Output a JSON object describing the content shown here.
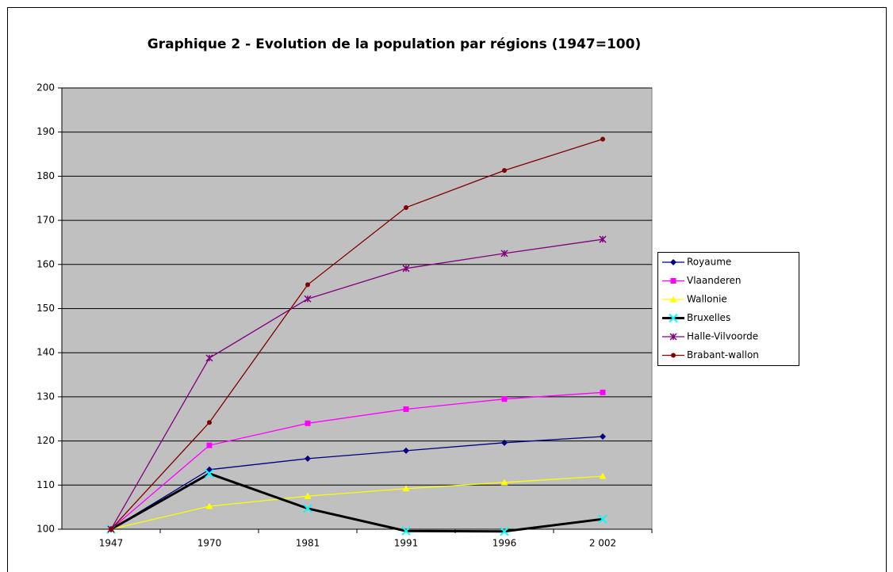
{
  "chart_data": {
    "type": "line",
    "title": "Graphique 2 - Evolution de la population par régions (1947=100)",
    "categories": [
      "1947",
      "1970",
      "1981",
      "1991",
      "1996",
      "2 002"
    ],
    "series": [
      {
        "name": "Royaume",
        "color": "#000080",
        "marker": "diamond",
        "values": [
          100,
          113.5,
          116,
          117.8,
          119.6,
          121
        ]
      },
      {
        "name": "Vlaanderen",
        "color": "#ff00ff",
        "marker": "square",
        "values": [
          100,
          119,
          124,
          127.2,
          129.5,
          131
        ]
      },
      {
        "name": "Wallonie",
        "color": "#ffff00",
        "marker": "triangle",
        "values": [
          100,
          105.2,
          107.5,
          109.2,
          110.6,
          112
        ]
      },
      {
        "name": "Bruxelles",
        "color": "#000000",
        "marker": "x",
        "marker_color": "#00ffff",
        "values": [
          100,
          112.6,
          104.7,
          99.6,
          99.5,
          102.3
        ]
      },
      {
        "name": "Halle-Vilvoorde",
        "color": "#800080",
        "marker": "star",
        "values": [
          100,
          138.8,
          152.2,
          159.1,
          162.5,
          165.7
        ]
      },
      {
        "name": "Brabant-wallon",
        "color": "#800000",
        "marker": "circle",
        "values": [
          100,
          124.2,
          155.4,
          172.9,
          181.3,
          188.4
        ]
      }
    ],
    "ylim": [
      100,
      200
    ],
    "yticks": [
      100,
      110,
      120,
      130,
      140,
      150,
      160,
      170,
      180,
      190,
      200
    ],
    "grid": true,
    "legend": "right"
  }
}
